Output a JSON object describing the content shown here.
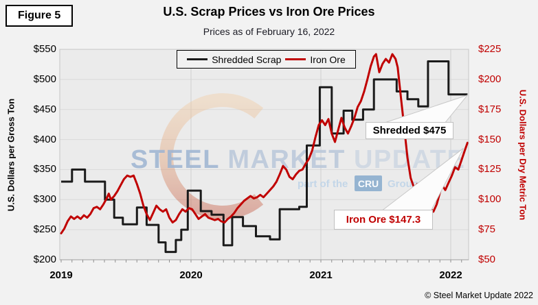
{
  "figure_label": "Figure 5",
  "title": "U.S. Scrap Prices vs Iron Ore Prices",
  "subtitle": "Prices as of February 16, 2022",
  "copyright": "© Steel Market Update 2022",
  "colors": {
    "scrap": "#1A1A1A",
    "iron_ore": "#C00000",
    "plot_bg": "#EBEBEB",
    "grid": "#D9D9D9",
    "year_grid": "#CFCFCF",
    "plot_border": "#C6C6C6"
  },
  "legend": {
    "items": [
      {
        "label": "Shredded Scrap",
        "color": "#1A1A1A"
      },
      {
        "label": "Iron Ore",
        "color": "#C00000"
      }
    ]
  },
  "left_axis": {
    "title": "U.S. Dollars per Gross Ton",
    "tick_labels": [
      "$550",
      "$500",
      "$450",
      "$400",
      "$350",
      "$300",
      "$250",
      "$200"
    ],
    "tick_values": [
      550,
      500,
      450,
      400,
      350,
      300,
      250,
      200
    ]
  },
  "right_axis": {
    "title": "U.S. Dollars per Dry Metric Ton",
    "tick_labels": [
      "$225",
      "$200",
      "$175",
      "$150",
      "$125",
      "$100",
      "$75",
      "$50"
    ],
    "tick_values": [
      225,
      200,
      175,
      150,
      125,
      100,
      75,
      50
    ]
  },
  "x_axis": {
    "year_labels": [
      "2019",
      "2020",
      "2021",
      "2022"
    ],
    "year_months": [
      0,
      12,
      24,
      36
    ]
  },
  "annotations": [
    {
      "text": "Shredded $475",
      "value": 475,
      "series": "Shredded Scrap"
    },
    {
      "text": "Iron Ore $147.3",
      "value": 147.3,
      "series": "Iron Ore"
    }
  ],
  "watermark": {
    "words": [
      "STEEL",
      "MARKET",
      "UPDATE"
    ],
    "word_colors": [
      "#9DB4D2",
      "#B9C7DA",
      "#CDD6E2"
    ],
    "tagline_prefix": "part of the",
    "tagline_box": "CRU",
    "tagline_suffix": "Group",
    "tagline_color": "#BFD4E8",
    "box_color": "#7FA6CB"
  },
  "chart_data": {
    "type": "line",
    "title": "U.S. Scrap Prices vs Iron Ore Prices",
    "subtitle": "Prices as of February 16, 2022",
    "x_unit": "months since Jan 2019",
    "x_tick_labels": [
      "2019",
      "2020",
      "2021",
      "2022"
    ],
    "grid": true,
    "legend_position": "top-center",
    "left_ylim": [
      200,
      550
    ],
    "right_ylim": [
      50,
      225
    ],
    "x_end": 37.55,
    "series": [
      {
        "name": "Shredded Scrap",
        "axis": "left",
        "style": "step",
        "color": "#1A1A1A",
        "points": [
          [
            0,
            330
          ],
          [
            1.0,
            350
          ],
          [
            2.2,
            330
          ],
          [
            4.05,
            300
          ],
          [
            4.9,
            270
          ],
          [
            5.7,
            259
          ],
          [
            7.0,
            287
          ],
          [
            7.9,
            258
          ],
          [
            9.0,
            229
          ],
          [
            9.65,
            213
          ],
          [
            10.6,
            233
          ],
          [
            11.1,
            250
          ],
          [
            11.7,
            315
          ],
          [
            12.9,
            281
          ],
          [
            13.9,
            275
          ],
          [
            15.0,
            224
          ],
          [
            15.8,
            271
          ],
          [
            16.8,
            256
          ],
          [
            18.0,
            239
          ],
          [
            19.3,
            234
          ],
          [
            20.2,
            284
          ],
          [
            22.0,
            288
          ],
          [
            22.7,
            390
          ],
          [
            23.9,
            487
          ],
          [
            25.0,
            410
          ],
          [
            26.1,
            448
          ],
          [
            26.9,
            433
          ],
          [
            27.9,
            450
          ],
          [
            28.9,
            500
          ],
          [
            31.0,
            480
          ],
          [
            32.0,
            467
          ],
          [
            33.0,
            455
          ],
          [
            33.9,
            530
          ],
          [
            35.8,
            475
          ]
        ]
      },
      {
        "name": "Iron Ore",
        "axis": "right",
        "style": "line",
        "color": "#C00000",
        "points": [
          [
            0,
            72
          ],
          [
            0.3,
            76
          ],
          [
            0.6,
            82
          ],
          [
            0.9,
            86
          ],
          [
            1.2,
            84
          ],
          [
            1.5,
            86
          ],
          [
            1.8,
            84
          ],
          [
            2.1,
            87
          ],
          [
            2.4,
            85
          ],
          [
            2.7,
            88
          ],
          [
            3.0,
            93
          ],
          [
            3.3,
            94
          ],
          [
            3.6,
            92
          ],
          [
            3.9,
            96
          ],
          [
            4.2,
            101
          ],
          [
            4.4,
            105
          ],
          [
            4.6,
            100
          ],
          [
            4.9,
            103
          ],
          [
            5.2,
            107
          ],
          [
            5.5,
            112
          ],
          [
            5.8,
            117
          ],
          [
            6.1,
            120
          ],
          [
            6.4,
            119
          ],
          [
            6.7,
            120
          ],
          [
            7.0,
            113
          ],
          [
            7.3,
            105
          ],
          [
            7.6,
            95
          ],
          [
            7.9,
            88
          ],
          [
            8.2,
            83
          ],
          [
            8.5,
            89
          ],
          [
            8.8,
            95
          ],
          [
            9.1,
            92
          ],
          [
            9.4,
            90
          ],
          [
            9.7,
            92
          ],
          [
            10.0,
            85
          ],
          [
            10.3,
            81
          ],
          [
            10.6,
            83
          ],
          [
            10.9,
            88
          ],
          [
            11.2,
            92
          ],
          [
            11.5,
            90
          ],
          [
            11.8,
            93
          ],
          [
            12.1,
            92
          ],
          [
            12.4,
            88
          ],
          [
            12.7,
            84
          ],
          [
            13.0,
            86
          ],
          [
            13.3,
            88
          ],
          [
            13.6,
            85
          ],
          [
            13.9,
            84
          ],
          [
            14.2,
            83
          ],
          [
            14.5,
            84
          ],
          [
            14.8,
            82
          ],
          [
            15.1,
            81
          ],
          [
            15.4,
            84
          ],
          [
            15.7,
            86
          ],
          [
            16.0,
            89
          ],
          [
            16.3,
            93
          ],
          [
            16.6,
            96
          ],
          [
            16.9,
            99
          ],
          [
            17.2,
            101
          ],
          [
            17.5,
            103
          ],
          [
            17.8,
            101
          ],
          [
            18.1,
            102
          ],
          [
            18.4,
            104
          ],
          [
            18.7,
            102
          ],
          [
            19.0,
            105
          ],
          [
            19.3,
            108
          ],
          [
            19.6,
            111
          ],
          [
            19.9,
            115
          ],
          [
            20.2,
            121
          ],
          [
            20.5,
            128
          ],
          [
            20.8,
            125
          ],
          [
            21.1,
            119
          ],
          [
            21.4,
            117
          ],
          [
            21.7,
            121
          ],
          [
            22.0,
            124
          ],
          [
            22.3,
            125
          ],
          [
            22.6,
            130
          ],
          [
            22.9,
            134
          ],
          [
            23.2,
            141
          ],
          [
            23.5,
            152
          ],
          [
            23.8,
            162
          ],
          [
            24.1,
            166
          ],
          [
            24.4,
            162
          ],
          [
            24.7,
            167
          ],
          [
            25.0,
            155
          ],
          [
            25.3,
            148
          ],
          [
            25.6,
            158
          ],
          [
            25.9,
            168
          ],
          [
            26.2,
            160
          ],
          [
            26.5,
            155
          ],
          [
            26.8,
            161
          ],
          [
            27.1,
            168
          ],
          [
            27.4,
            177
          ],
          [
            27.7,
            182
          ],
          [
            28.0,
            190
          ],
          [
            28.3,
            200
          ],
          [
            28.6,
            211
          ],
          [
            28.9,
            219
          ],
          [
            29.1,
            221
          ],
          [
            29.4,
            206
          ],
          [
            29.7,
            213
          ],
          [
            30.0,
            217
          ],
          [
            30.3,
            214
          ],
          [
            30.6,
            221
          ],
          [
            30.9,
            217
          ],
          [
            31.1,
            210
          ],
          [
            31.4,
            185
          ],
          [
            31.7,
            160
          ],
          [
            32.0,
            135
          ],
          [
            32.3,
            118
          ],
          [
            32.6,
            110
          ],
          [
            32.9,
            113
          ],
          [
            33.1,
            107
          ],
          [
            33.3,
            111
          ],
          [
            33.5,
            107
          ],
          [
            33.8,
            100
          ],
          [
            34.1,
            93
          ],
          [
            34.4,
            90
          ],
          [
            34.7,
            96
          ],
          [
            35.0,
            106
          ],
          [
            35.2,
            112
          ],
          [
            35.5,
            108
          ],
          [
            35.8,
            114
          ],
          [
            36.1,
            120
          ],
          [
            36.4,
            127
          ],
          [
            36.7,
            125
          ],
          [
            37.0,
            133
          ],
          [
            37.3,
            141
          ],
          [
            37.55,
            147.3
          ]
        ]
      }
    ]
  }
}
